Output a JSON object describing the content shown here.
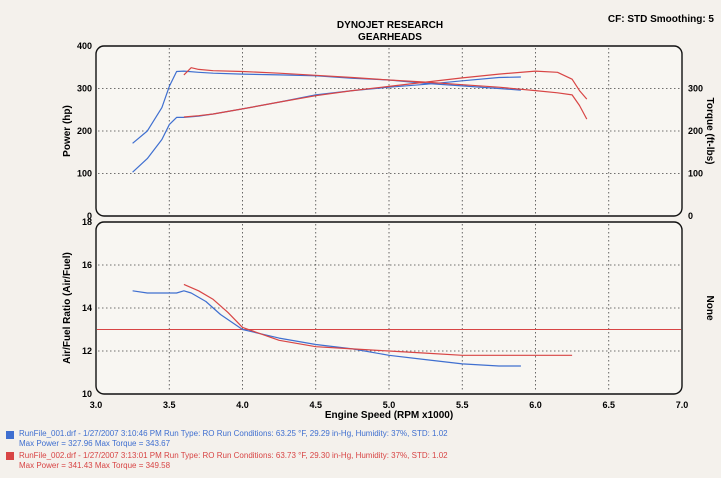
{
  "header": {
    "title_line1": "DYNOJET RESEARCH",
    "title_line2": "GEARHEADS",
    "settings": "CF: STD  Smoothing: 5"
  },
  "colors": {
    "run1": "#3f6fd0",
    "run2": "#d84545",
    "grid": "#444444",
    "frame": "#111111"
  },
  "chart_data": [
    {
      "type": "line",
      "title": "",
      "xlabel": "",
      "ylabel": "Power (hp)",
      "ylabel_right": "Torque (ft-lbs)",
      "xlim": [
        3.0,
        7.0
      ],
      "ylim": [
        0,
        400
      ],
      "grid": true,
      "x_ticks": [],
      "y_ticks": [
        "0",
        "100",
        "200",
        "300",
        "400"
      ],
      "y_ticks_right": [
        "0",
        "100",
        "200",
        "300"
      ],
      "series": [
        {
          "name": "RunFile_001.drf",
          "quantity": "power",
          "color": "#3f6fd0",
          "x": [
            3.25,
            3.35,
            3.45,
            3.5,
            3.55,
            3.6,
            3.7,
            3.8,
            4.0,
            4.25,
            4.5,
            4.75,
            5.0,
            5.25,
            5.5,
            5.75,
            5.9
          ],
          "y": [
            103,
            135,
            180,
            215,
            232,
            232,
            235,
            240,
            252,
            268,
            285,
            295,
            303,
            310,
            318,
            326,
            327
          ]
        },
        {
          "name": "RunFile_001.drf",
          "quantity": "torque",
          "color": "#3f6fd0",
          "x": [
            3.25,
            3.35,
            3.45,
            3.5,
            3.55,
            3.6,
            3.7,
            3.8,
            4.0,
            4.25,
            4.5,
            4.75,
            5.0,
            5.25,
            5.5,
            5.75,
            5.9
          ],
          "y": [
            171,
            200,
            255,
            305,
            340,
            341,
            338,
            336,
            334,
            332,
            330,
            324,
            320,
            312,
            306,
            300,
            296
          ]
        },
        {
          "name": "RunFile_002.drf",
          "quantity": "power",
          "color": "#d84545",
          "x": [
            3.6,
            3.7,
            3.8,
            4.0,
            4.25,
            4.5,
            4.75,
            5.0,
            5.25,
            5.5,
            5.75,
            6.0,
            6.15,
            6.25,
            6.3,
            6.35
          ],
          "y": [
            233,
            236,
            240,
            252,
            268,
            283,
            295,
            305,
            315,
            325,
            334,
            341,
            338,
            322,
            295,
            275
          ]
        },
        {
          "name": "RunFile_002.drf",
          "quantity": "torque",
          "color": "#d84545",
          "x": [
            3.6,
            3.65,
            3.7,
            3.8,
            4.0,
            4.25,
            4.5,
            4.75,
            5.0,
            5.25,
            5.5,
            5.75,
            6.0,
            6.15,
            6.25,
            6.3,
            6.35
          ],
          "y": [
            332,
            349,
            345,
            342,
            340,
            336,
            331,
            326,
            320,
            315,
            309,
            303,
            295,
            290,
            285,
            260,
            228
          ]
        }
      ]
    },
    {
      "type": "line",
      "title": "",
      "xlabel": "Engine Speed (RPM x1000)",
      "ylabel": "Air/Fuel Ratio (Air/Fuel)",
      "ylabel_right": "None",
      "xlim": [
        3.0,
        7.0
      ],
      "ylim": [
        10,
        18
      ],
      "grid": true,
      "x_ticks": [
        "3.0",
        "3.5",
        "4.0",
        "4.5",
        "5.0",
        "5.5",
        "6.0",
        "6.5",
        "7.0"
      ],
      "y_ticks": [
        "10",
        "12",
        "14",
        "16",
        "18"
      ],
      "reference_line": {
        "y": 13.0,
        "color": "#d84545"
      },
      "series": [
        {
          "name": "RunFile_001.drf",
          "color": "#3f6fd0",
          "x": [
            3.25,
            3.35,
            3.45,
            3.55,
            3.6,
            3.65,
            3.75,
            3.85,
            4.0,
            4.25,
            4.5,
            4.75,
            5.0,
            5.25,
            5.5,
            5.75,
            5.9
          ],
          "y": [
            14.8,
            14.7,
            14.7,
            14.7,
            14.8,
            14.7,
            14.3,
            13.7,
            13.0,
            12.6,
            12.3,
            12.1,
            11.8,
            11.6,
            11.4,
            11.3,
            11.3
          ]
        },
        {
          "name": "RunFile_002.drf",
          "color": "#d84545",
          "x": [
            3.6,
            3.7,
            3.8,
            3.9,
            4.0,
            4.25,
            4.5,
            4.75,
            5.0,
            5.25,
            5.5,
            5.75,
            6.0,
            6.25
          ],
          "y": [
            15.1,
            14.8,
            14.4,
            13.8,
            13.1,
            12.5,
            12.2,
            12.1,
            12.0,
            11.9,
            11.8,
            11.8,
            11.8,
            11.8
          ]
        }
      ]
    }
  ],
  "legend": [
    {
      "color": "#3f6fd0",
      "line1": "RunFile_001.drf - 1/27/2007 3:10:46 PM  Run Type: RO  Run Conditions: 63.25 °F, 29.29 in-Hg,  Humidity:  37%, STD: 1.02",
      "line2": "Max Power = 327.96  Max Torque = 343.67"
    },
    {
      "color": "#d84545",
      "line1": "RunFile_002.drf - 1/27/2007 3:13:01 PM  Run Type: RO  Run Conditions: 63.73 °F, 29.30 in-Hg,  Humidity:  37%, STD: 1.02",
      "line2": "Max Power = 341.43  Max Torque = 349.58"
    }
  ]
}
